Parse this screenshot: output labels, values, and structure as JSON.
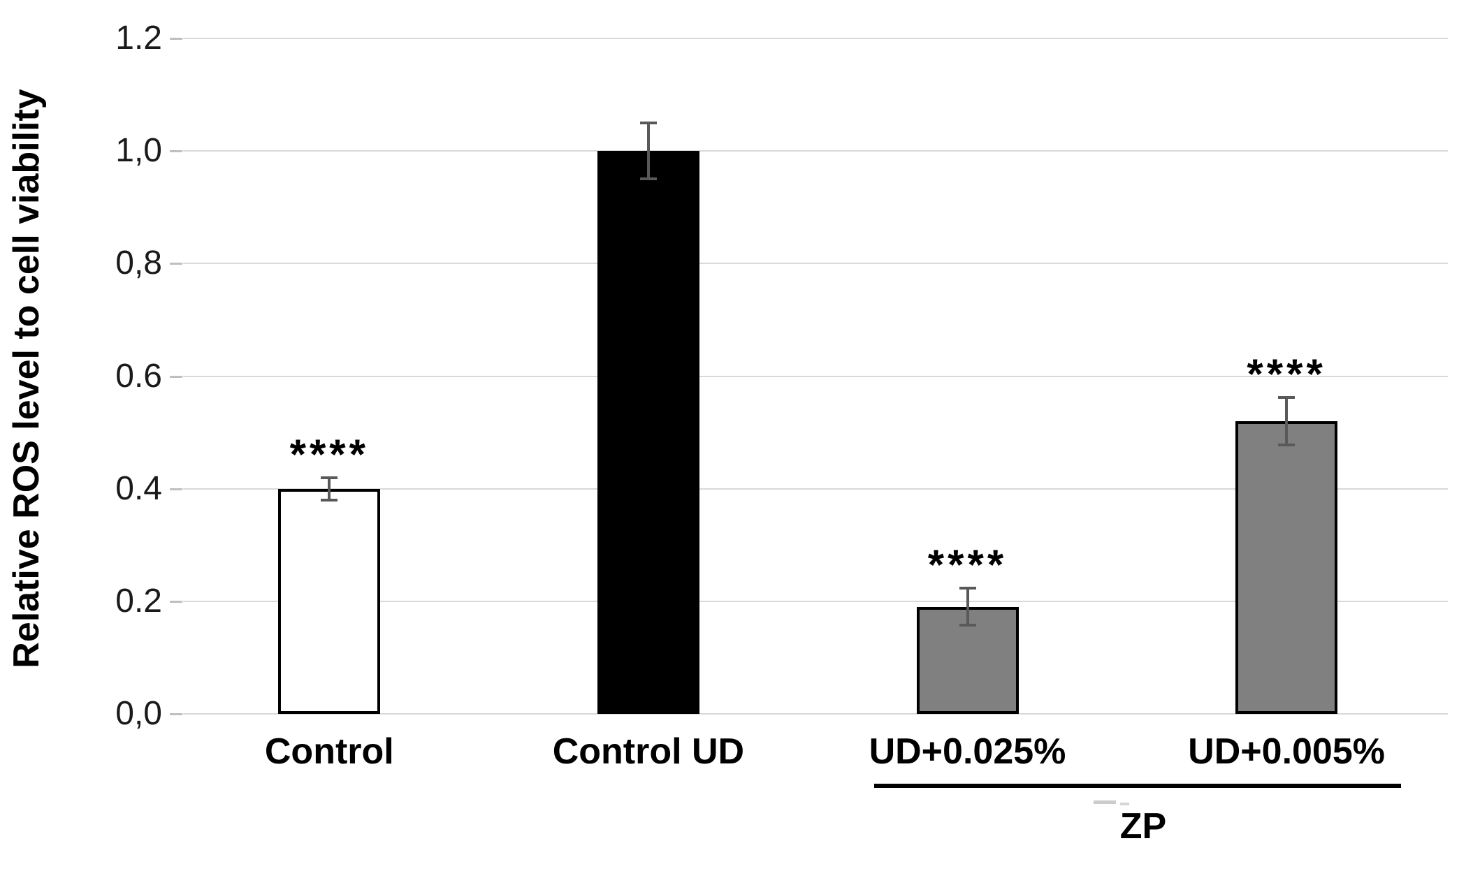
{
  "page": {
    "background": "#ffffff"
  },
  "chart_data": {
    "type": "bar",
    "title": "",
    "xlabel": "",
    "ylabel": "Relative ROS level to cell viability",
    "ylim": [
      0,
      1.2
    ],
    "grid": true,
    "gridline_color": "#d9d9d9",
    "axis_tick_color": "#bfbfbf",
    "categories": [
      "Control",
      "Control UD",
      "UD+0.025%",
      "UD+0.005%"
    ],
    "values": [
      0.4,
      1.0,
      0.19,
      0.52
    ],
    "error_bars": [
      0.02,
      0.05,
      0.033,
      0.042
    ],
    "significance_labels": [
      "****",
      "",
      "****",
      "****"
    ],
    "bar_fill_colors": [
      "#ffffff",
      "#000000",
      "#808080",
      "#808080"
    ],
    "bar_border_color": "#000000",
    "error_bar_color": "#595959",
    "ytick_values": [
      1.2,
      1.0,
      0.8,
      0.6,
      0.4,
      0.2,
      0.0
    ],
    "ytick_labels": [
      "1.2",
      "1,0",
      "0,8",
      "0.6",
      "0.4",
      "0.2",
      "0,0"
    ],
    "group_annotation": {
      "label": "ZP",
      "categories_spanned": [
        "UD+0.025%",
        "UD+0.005%"
      ]
    }
  }
}
